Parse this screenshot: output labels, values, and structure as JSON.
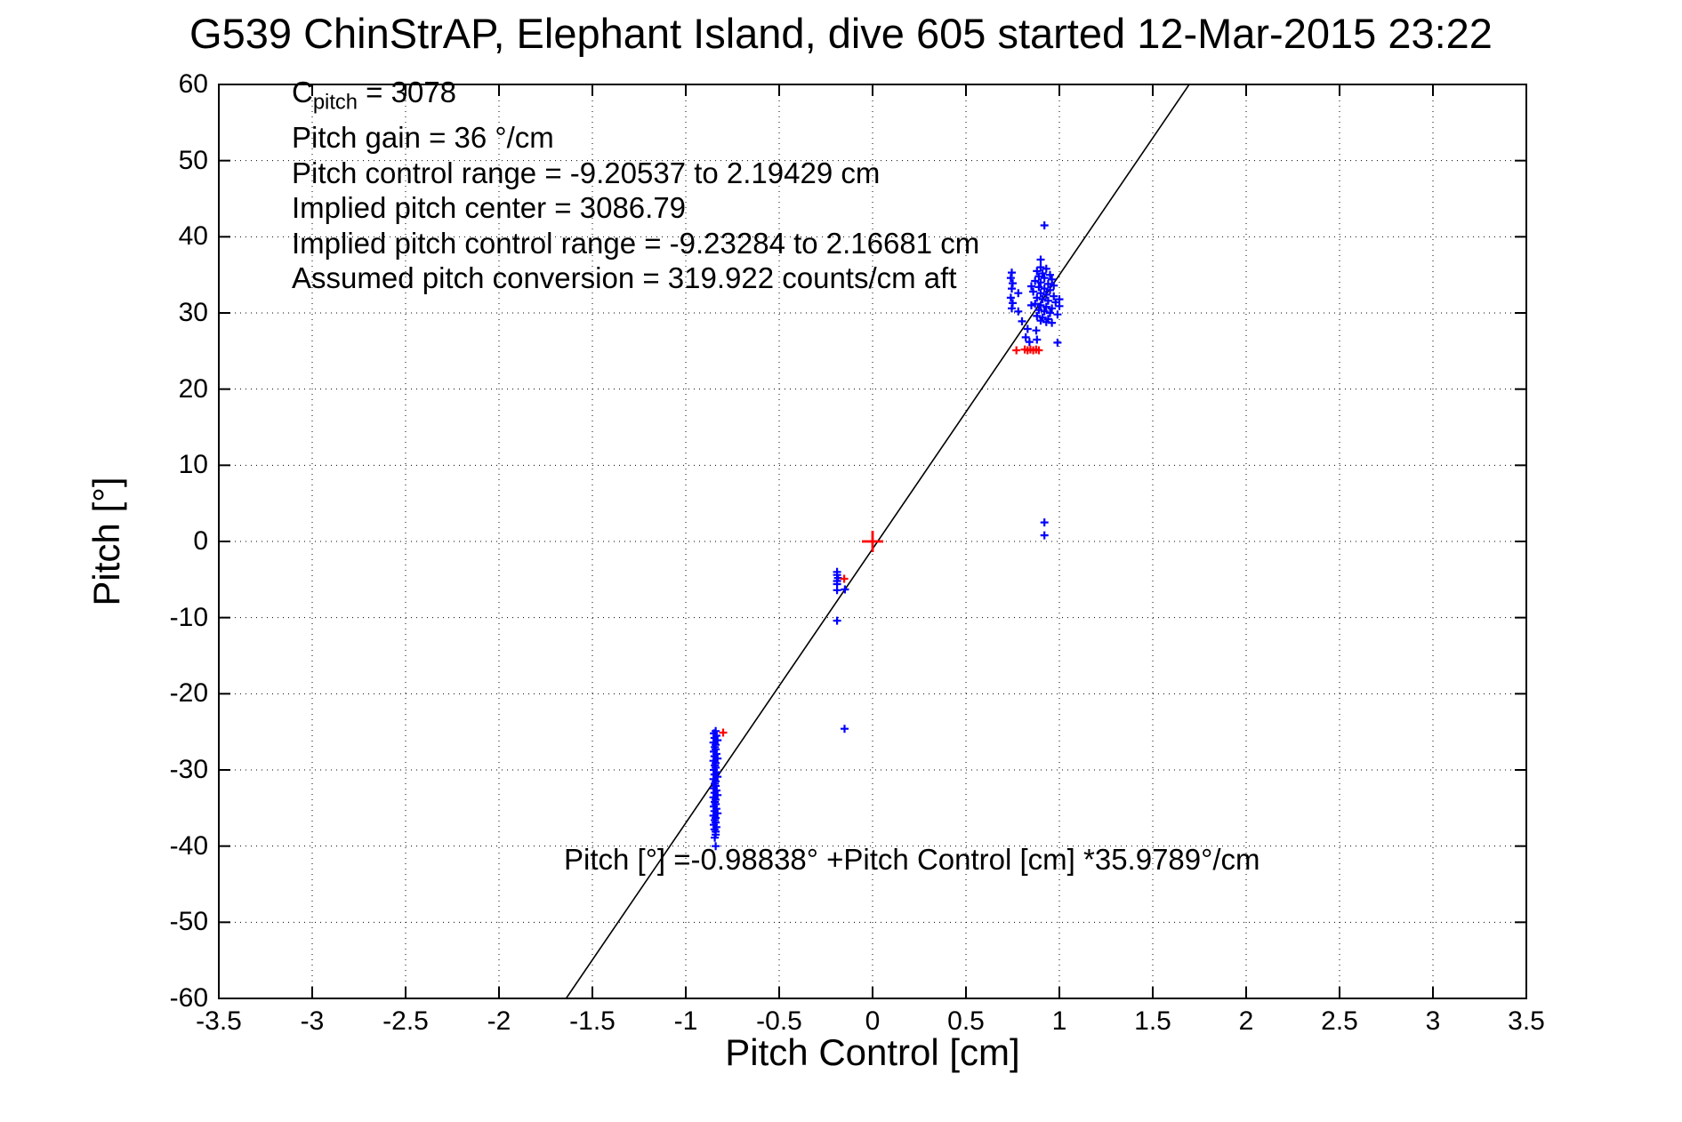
{
  "title": "G539 ChinStrAP, Elephant Island, dive 605 started 12-Mar-2015 23:22",
  "annotations": {
    "c_pitch_base": "C",
    "c_pitch_sub": "pitch",
    "c_pitch_value": " = 3078",
    "lines": [
      "Pitch gain = 36 °/cm",
      "Pitch control range = -9.20537 to 2.19429 cm",
      "Implied pitch center = 3086.79",
      "Implied pitch control range = -9.23284 to 2.16681 cm",
      "Assumed pitch conversion = 319.922 counts/cm aft"
    ],
    "equation": "Pitch [°] =-0.98838° +Pitch Control [cm] *35.9789°/cm"
  },
  "chart_data": {
    "type": "scatter",
    "title": "G539 ChinStrAP, Elephant Island, dive 605 started 12-Mar-2015 23:22",
    "xlabel": "Pitch Control [cm]",
    "ylabel": "Pitch [°]",
    "xlim": [
      -3.5,
      3.5
    ],
    "ylim": [
      -60,
      60
    ],
    "xticks": [
      -3.5,
      -3,
      -2.5,
      -2,
      -1.5,
      -1,
      -0.5,
      0,
      0.5,
      1,
      1.5,
      2,
      2.5,
      3,
      3.5
    ],
    "xtick_labels": [
      "-3.5",
      "-3",
      "-2.5",
      "-2",
      "-1.5",
      "-1",
      "-0.5",
      "0",
      "0.5",
      "1",
      "1.5",
      "2",
      "2.5",
      "3",
      "3.5"
    ],
    "yticks": [
      -60,
      -50,
      -40,
      -30,
      -20,
      -10,
      0,
      10,
      20,
      30,
      40,
      50,
      60
    ],
    "ytick_labels": [
      "-60",
      "-50",
      "-40",
      "-30",
      "-20",
      "-10",
      "0",
      "10",
      "20",
      "30",
      "40",
      "50",
      "60"
    ],
    "grid": true,
    "grid_style": "dotted",
    "legend": "none",
    "fit_line": {
      "intercept_deg": -0.98838,
      "slope_deg_per_cm": 35.9789,
      "x1": -1.6407,
      "y1": -60,
      "x2": 1.6952,
      "y2": 60,
      "color": "#000000"
    },
    "series": [
      {
        "name": "measured-pitch-points",
        "color": "#0000ff",
        "marker": "plus-small",
        "points": [
          [
            -0.84,
            -24.9
          ],
          [
            -0.85,
            -25.2
          ],
          [
            -0.836,
            -25.5
          ],
          [
            -0.846,
            -25.8
          ],
          [
            -0.83,
            -26.1
          ],
          [
            -0.852,
            -26.4
          ],
          [
            -0.84,
            -26.7
          ],
          [
            -0.845,
            -27.0
          ],
          [
            -0.84,
            -27.3
          ],
          [
            -0.85,
            -27.6
          ],
          [
            -0.836,
            -27.9
          ],
          [
            -0.846,
            -28.2
          ],
          [
            -0.83,
            -28.5
          ],
          [
            -0.852,
            -28.8
          ],
          [
            -0.84,
            -29.1
          ],
          [
            -0.845,
            -29.4
          ],
          [
            -0.84,
            -29.7
          ],
          [
            -0.85,
            -30.0
          ],
          [
            -0.836,
            -30.3
          ],
          [
            -0.846,
            -30.6
          ],
          [
            -0.83,
            -30.9
          ],
          [
            -0.852,
            -31.2
          ],
          [
            -0.84,
            -31.5
          ],
          [
            -0.845,
            -31.8
          ],
          [
            -0.84,
            -32.1
          ],
          [
            -0.85,
            -32.4
          ],
          [
            -0.836,
            -32.7
          ],
          [
            -0.846,
            -33.0
          ],
          [
            -0.83,
            -33.3
          ],
          [
            -0.852,
            -33.6
          ],
          [
            -0.84,
            -33.9
          ],
          [
            -0.845,
            -34.2
          ],
          [
            -0.84,
            -34.5
          ],
          [
            -0.85,
            -34.8
          ],
          [
            -0.836,
            -35.1
          ],
          [
            -0.846,
            -35.4
          ],
          [
            -0.83,
            -35.7
          ],
          [
            -0.852,
            -36.0
          ],
          [
            -0.84,
            -36.3
          ],
          [
            -0.845,
            -36.6
          ],
          [
            -0.84,
            -36.9
          ],
          [
            -0.85,
            -37.2
          ],
          [
            -0.836,
            -37.5
          ],
          [
            -0.846,
            -37.8
          ],
          [
            -0.84,
            -38.1
          ],
          [
            -0.84,
            -38.5
          ],
          [
            -0.845,
            -38.9
          ],
          [
            -0.84,
            -40.0
          ],
          [
            -0.15,
            -24.6
          ],
          [
            -0.19,
            -4.0
          ],
          [
            -0.19,
            -4.4
          ],
          [
            -0.185,
            -4.8
          ],
          [
            -0.19,
            -5.2
          ],
          [
            -0.19,
            -5.6
          ],
          [
            -0.19,
            -6.4
          ],
          [
            -0.148,
            -6.3
          ],
          [
            -0.19,
            -10.4
          ],
          [
            0.92,
            41.5
          ],
          [
            0.9,
            37.0
          ],
          [
            0.9,
            36.0
          ],
          [
            0.93,
            35.8
          ],
          [
            0.88,
            35.5
          ],
          [
            0.91,
            35.2
          ],
          [
            0.95,
            35.0
          ],
          [
            0.89,
            34.8
          ],
          [
            0.92,
            34.6
          ],
          [
            0.96,
            34.4
          ],
          [
            0.87,
            34.2
          ],
          [
            0.9,
            34.0
          ],
          [
            0.94,
            33.8
          ],
          [
            0.97,
            33.6
          ],
          [
            0.89,
            33.4
          ],
          [
            0.92,
            33.2
          ],
          [
            0.95,
            33.0
          ],
          [
            0.86,
            32.8
          ],
          [
            0.9,
            32.6
          ],
          [
            0.93,
            32.4
          ],
          [
            0.97,
            32.2
          ],
          [
            0.88,
            32.0
          ],
          [
            0.91,
            31.8
          ],
          [
            0.94,
            31.6
          ],
          [
            0.98,
            31.4
          ],
          [
            0.87,
            31.2
          ],
          [
            0.9,
            31.0
          ],
          [
            0.93,
            30.8
          ],
          [
            0.96,
            30.6
          ],
          [
            0.89,
            30.4
          ],
          [
            0.92,
            30.2
          ],
          [
            0.95,
            30.0
          ],
          [
            0.99,
            29.8
          ],
          [
            0.88,
            29.6
          ],
          [
            0.91,
            29.4
          ],
          [
            0.94,
            29.2
          ],
          [
            0.9,
            29.0
          ],
          [
            0.93,
            28.8
          ],
          [
            0.96,
            28.7
          ],
          [
            1.0,
            30.9
          ],
          [
            1.0,
            31.8
          ],
          [
            0.85,
            33.5
          ],
          [
            0.85,
            31.0
          ],
          [
            0.745,
            35.3
          ],
          [
            0.74,
            34.6
          ],
          [
            0.75,
            33.9
          ],
          [
            0.745,
            33.2
          ],
          [
            0.78,
            32.6
          ],
          [
            0.74,
            32.0
          ],
          [
            0.75,
            31.3
          ],
          [
            0.745,
            30.6
          ],
          [
            0.78,
            30.2
          ],
          [
            0.8,
            28.9
          ],
          [
            0.83,
            27.9
          ],
          [
            0.82,
            26.8
          ],
          [
            0.84,
            26.2
          ],
          [
            0.876,
            27.7
          ],
          [
            0.88,
            26.5
          ],
          [
            0.99,
            26.1
          ],
          [
            0.92,
            2.5
          ],
          [
            0.92,
            0.8
          ]
        ]
      },
      {
        "name": "flagged-pitch-points",
        "color": "#ff0000",
        "marker": "plus-small",
        "points": [
          [
            0.77,
            25.1
          ],
          [
            0.815,
            25.2
          ],
          [
            0.83,
            25.1
          ],
          [
            0.845,
            25.2
          ],
          [
            0.86,
            25.1
          ],
          [
            0.875,
            25.2
          ],
          [
            0.89,
            25.1
          ],
          [
            -0.8,
            -25.1
          ],
          [
            -0.152,
            -4.9
          ]
        ]
      },
      {
        "name": "implied-pitch-center-marker",
        "color": "#ff0000",
        "marker": "plus-large",
        "points": [
          [
            0,
            0
          ]
        ]
      }
    ]
  },
  "colors": {
    "point_blue": "#0000ff",
    "point_red": "#ff0000",
    "axis_black": "#000000",
    "background": "#ffffff"
  }
}
